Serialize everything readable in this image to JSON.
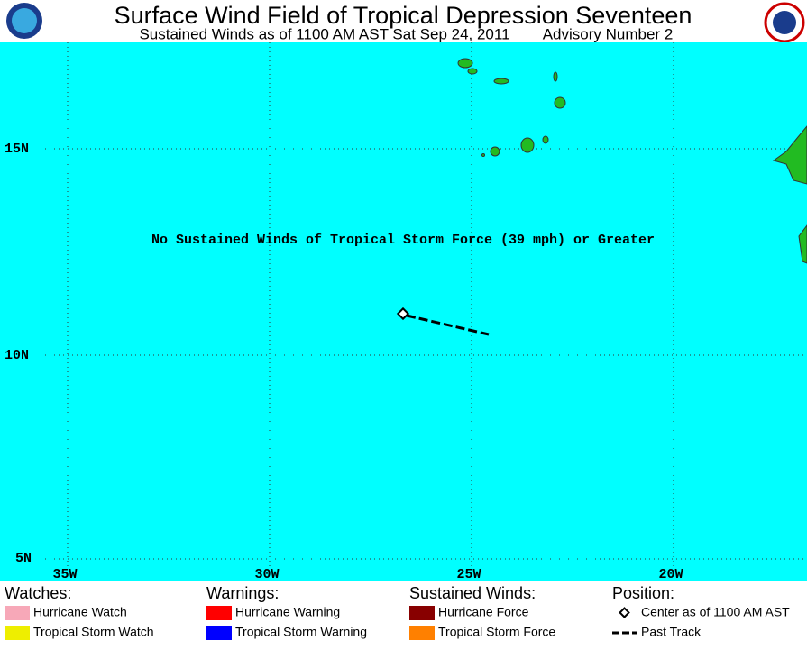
{
  "header": {
    "title": "Surface Wind Field of Tropical Depression Seventeen",
    "subtitle": "Sustained Winds as of 1100 AM AST Sat Sep 24, 2011",
    "advisory": "Advisory Number 2"
  },
  "map": {
    "message": "No Sustained Winds of Tropical Storm Force (39 mph) or Greater",
    "lat_labels": [
      "15N",
      "10N",
      "5N"
    ],
    "lon_labels": [
      "35W",
      "30W",
      "25W",
      "20W"
    ]
  },
  "legend": {
    "watches": {
      "title": "Watches:",
      "items": [
        "Hurricane Watch",
        "Tropical Storm Watch"
      ]
    },
    "warnings": {
      "title": "Warnings:",
      "items": [
        "Hurricane Warning",
        "Tropical Storm Warning"
      ]
    },
    "winds": {
      "title": "Sustained Winds:",
      "items": [
        "Hurricane Force",
        "Tropical Storm Force"
      ]
    },
    "position": {
      "title": "Position:",
      "items": [
        "Center as of 1100 AM AST",
        "Past Track"
      ]
    }
  }
}
